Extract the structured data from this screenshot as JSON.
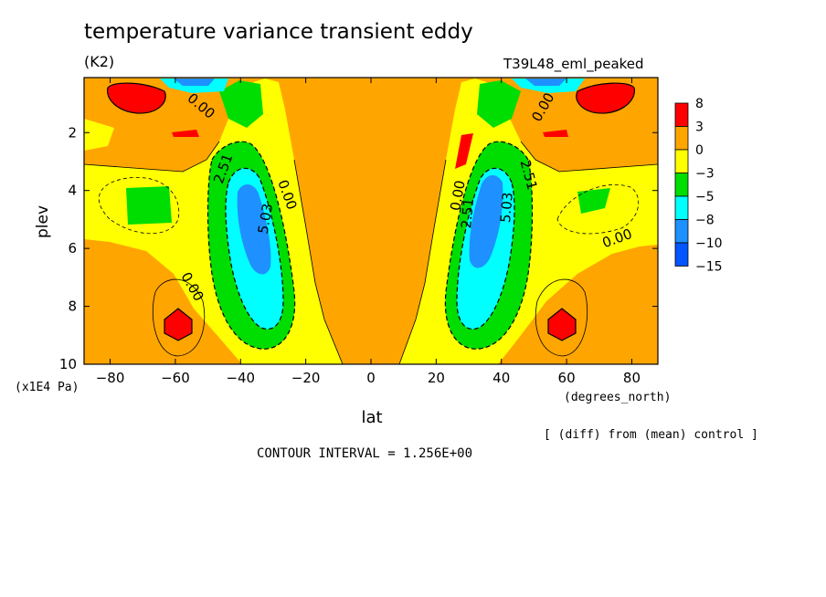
{
  "title": "temperature variance transient eddy",
  "units": "(K2)",
  "run_label": "T39L48_eml_peaked",
  "diff_note": "[ (diff) from (mean) control ]",
  "contour_interval": "CONTOUR INTERVAL = 1.256E+00",
  "chart_data": {
    "type": "heatmap",
    "xlabel": "lat",
    "xunits": "(degrees_north)",
    "ylabel": "plev",
    "yunits": "(x1E4 Pa)",
    "x_ticks": [
      -80,
      -60,
      -40,
      -20,
      0,
      20,
      40,
      60,
      80
    ],
    "y_ticks": [
      2,
      4,
      6,
      8,
      10
    ],
    "xlim": [
      -88,
      88
    ],
    "ylim": [
      0.1,
      10
    ],
    "y_inverted": true,
    "legend": {
      "position": "right",
      "labels": [
        "8",
        "3",
        "0",
        "-3",
        "-5",
        "-8",
        "-10",
        "-15"
      ],
      "colors": [
        "#ff0000",
        "#ffa500",
        "#ffff00",
        "#00dd00",
        "#00ffff",
        "#1e90ff",
        "#0055ff"
      ]
    },
    "contour_labels": [
      {
        "text": "0.00",
        "lat": -53,
        "plev": 1.2,
        "angle": 40
      },
      {
        "text": "2.51",
        "lat": -44,
        "plev": 3.3,
        "angle": -70
      },
      {
        "text": "5.03",
        "lat": -31,
        "plev": 5.0,
        "angle": -80
      },
      {
        "text": "0.00",
        "lat": -27,
        "plev": 4.2,
        "angle": 70
      },
      {
        "text": "0.00",
        "lat": -56,
        "plev": 7.4,
        "angle": 60
      },
      {
        "text": "0.00",
        "lat": 28,
        "plev": 4.2,
        "angle": -80
      },
      {
        "text": "2.51",
        "lat": 31,
        "plev": 4.8,
        "angle": -85
      },
      {
        "text": "5.03",
        "lat": 43,
        "plev": 4.6,
        "angle": -85
      },
      {
        "text": "2.51",
        "lat": 47,
        "plev": 3.5,
        "angle": 75
      },
      {
        "text": "0.00",
        "lat": 54,
        "plev": 1.2,
        "angle": -60
      },
      {
        "text": "0.00",
        "lat": 76,
        "plev": 5.8,
        "angle": -20
      }
    ],
    "features": {
      "background": "#ffa500",
      "regions": [
        {
          "color": "#ffff00",
          "shape": "left-flank",
          "note": "yellow zone from -88 to about -20 lat"
        },
        {
          "color": "#ffff00",
          "shape": "right-flank",
          "note": "yellow zone from about 20 to 88 lat"
        },
        {
          "color": "#00dd00",
          "center_lat": -36,
          "center_plev": 5.5
        },
        {
          "color": "#00ffff",
          "center_lat": -37,
          "center_plev": 5.3
        },
        {
          "color": "#1e90ff",
          "center_lat": -38,
          "center_plev": 5.0
        },
        {
          "color": "#00dd00",
          "center_lat": 37,
          "center_plev": 5.5
        },
        {
          "color": "#00ffff",
          "center_lat": 37,
          "center_plev": 5.3
        },
        {
          "color": "#1e90ff",
          "center_lat": 38,
          "center_plev": 5.0
        },
        {
          "color": "#ff0000",
          "center_lat": -70,
          "center_plev": 0.6
        },
        {
          "color": "#ff0000",
          "center_lat": -59,
          "center_plev": 8.5
        },
        {
          "color": "#ff0000",
          "center_lat": 70,
          "center_plev": 0.6
        },
        {
          "color": "#ff0000",
          "center_lat": 59,
          "center_plev": 8.5
        },
        {
          "color": "#00dd00",
          "center_lat": -72,
          "center_plev": 4.4
        },
        {
          "color": "#00dd00",
          "center_lat": 71,
          "center_plev": 4.2
        }
      ]
    }
  }
}
